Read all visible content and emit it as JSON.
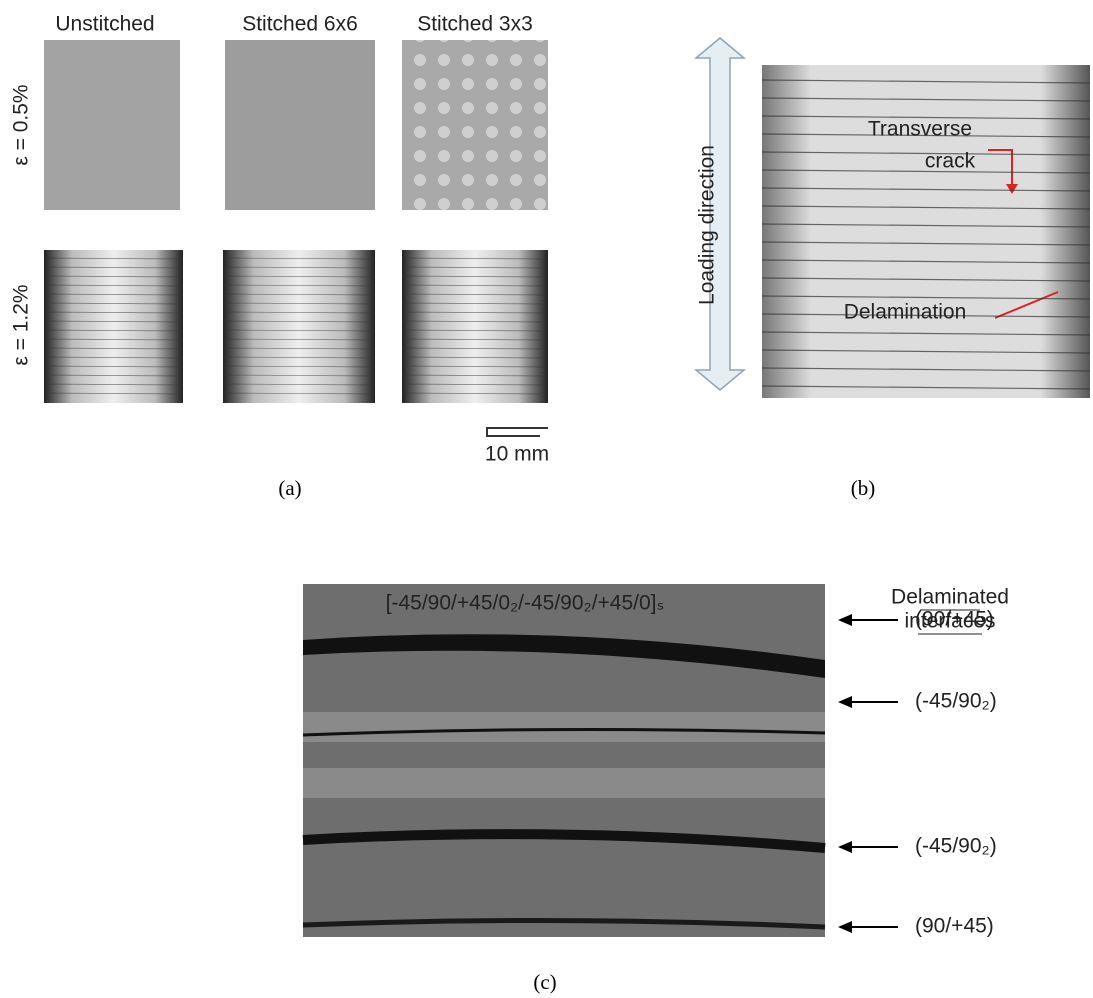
{
  "panel_a": {
    "columns": [
      "Unstitched",
      "Stitched 6x6",
      "Stitched 3x3"
    ],
    "rows": [
      "ε = 0.5%",
      "ε = 1.2%"
    ],
    "scale_bar": "10 mm",
    "caption": "(a)"
  },
  "panel_b": {
    "direction_label": "Loading direction",
    "crack_label": [
      "Transverse",
      "crack"
    ],
    "delamination_label": "Delamination",
    "caption": "(b)"
  },
  "panel_c": {
    "title": "[-45/90/+45/0₂/-45/90₂/+45/0]ₛ",
    "legend_title": [
      "Delaminated",
      "interfaces"
    ],
    "interfaces": [
      "(90/+45)",
      "(-45/90₂)",
      "(-45/90₂)",
      "(90/+45)"
    ],
    "caption": "(c)"
  }
}
